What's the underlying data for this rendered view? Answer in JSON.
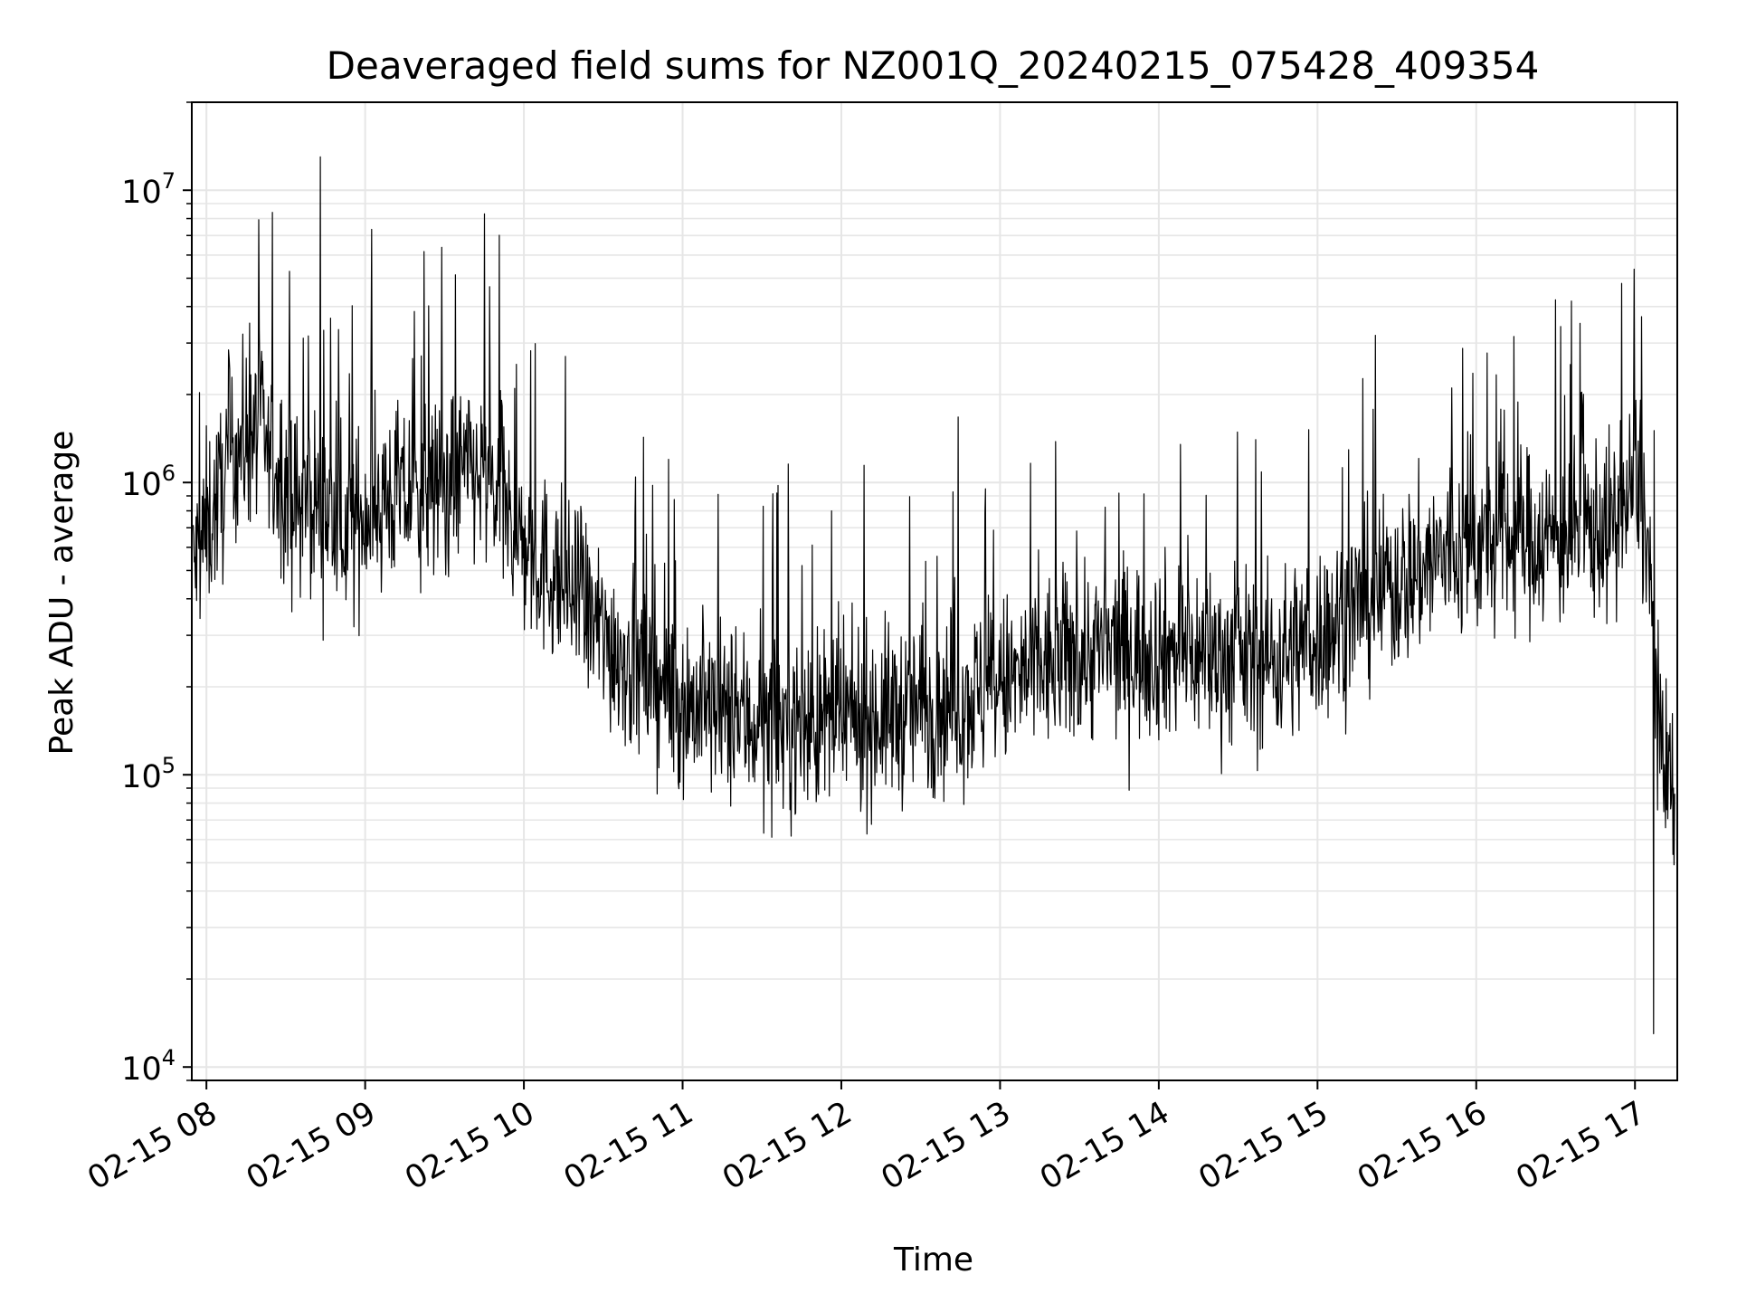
{
  "chart_data": {
    "type": "line",
    "title": "Deaveraged field sums for NZ001Q_20240215_075428_409354",
    "xlabel": "Time",
    "ylabel": "Peak ADU - average",
    "yscale": "log",
    "ylim": [
      9000,
      20000000
    ],
    "xlim": [
      "2024-02-15 07:54:28",
      "2024-02-15 17:16:00"
    ],
    "grid": true,
    "line_color": "#000000",
    "grid_color": "#e6e6e6",
    "x_tick_labels": [
      "02-15 08",
      "02-15 09",
      "02-15 10",
      "02-15 11",
      "02-15 12",
      "02-15 13",
      "02-15 14",
      "02-15 15",
      "02-15 16",
      "02-15 17"
    ],
    "y_tick_labels": [
      {
        "base": "10",
        "exp": "4",
        "value": 10000
      },
      {
        "base": "10",
        "exp": "5",
        "value": 100000
      },
      {
        "base": "10",
        "exp": "6",
        "value": 1000000
      },
      {
        "base": "10",
        "exp": "7",
        "value": 10000000
      }
    ],
    "series": [
      {
        "x": [
          "2024-02-15 07:55",
          "2024-02-15 08:00",
          "2024-02-15 08:05",
          "2024-02-15 08:10",
          "2024-02-15 08:15",
          "2024-02-15 08:20",
          "2024-02-15 08:25",
          "2024-02-15 08:30",
          "2024-02-15 08:35",
          "2024-02-15 08:40",
          "2024-02-15 08:45",
          "2024-02-15 08:50",
          "2024-02-15 08:55",
          "2024-02-15 09:00",
          "2024-02-15 09:10",
          "2024-02-15 09:20",
          "2024-02-15 09:30",
          "2024-02-15 09:40",
          "2024-02-15 09:45",
          "2024-02-15 09:50",
          "2024-02-15 10:00",
          "2024-02-15 10:15",
          "2024-02-15 10:30",
          "2024-02-15 10:45",
          "2024-02-15 11:00",
          "2024-02-15 11:15",
          "2024-02-15 11:30",
          "2024-02-15 11:45",
          "2024-02-15 12:00",
          "2024-02-15 12:15",
          "2024-02-15 12:30",
          "2024-02-15 12:45",
          "2024-02-15 13:00",
          "2024-02-15 13:15",
          "2024-02-15 13:30",
          "2024-02-15 13:45",
          "2024-02-15 14:00",
          "2024-02-15 14:15",
          "2024-02-15 14:30",
          "2024-02-15 14:45",
          "2024-02-15 15:00",
          "2024-02-15 15:15",
          "2024-02-15 15:30",
          "2024-02-15 15:45",
          "2024-02-15 16:00",
          "2024-02-15 16:15",
          "2024-02-15 16:30",
          "2024-02-15 16:45",
          "2024-02-15 16:55",
          "2024-02-15 17:00",
          "2024-02-15 17:05",
          "2024-02-15 17:10",
          "2024-02-15 17:15"
        ],
        "y": [
          500000,
          700000,
          900000,
          1300000,
          1400000,
          1600000,
          1100000,
          1000000,
          800000,
          900000,
          800000,
          700000,
          700000,
          800000,
          900000,
          900000,
          1000000,
          1100000,
          1000000,
          900000,
          600000,
          450000,
          300000,
          220000,
          180000,
          160000,
          150000,
          150000,
          150000,
          160000,
          170000,
          180000,
          200000,
          230000,
          260000,
          270000,
          270000,
          260000,
          250000,
          250000,
          300000,
          380000,
          450000,
          550000,
          600000,
          650000,
          650000,
          700000,
          700000,
          1100000,
          600000,
          100000,
          80000
        ]
      }
    ]
  }
}
